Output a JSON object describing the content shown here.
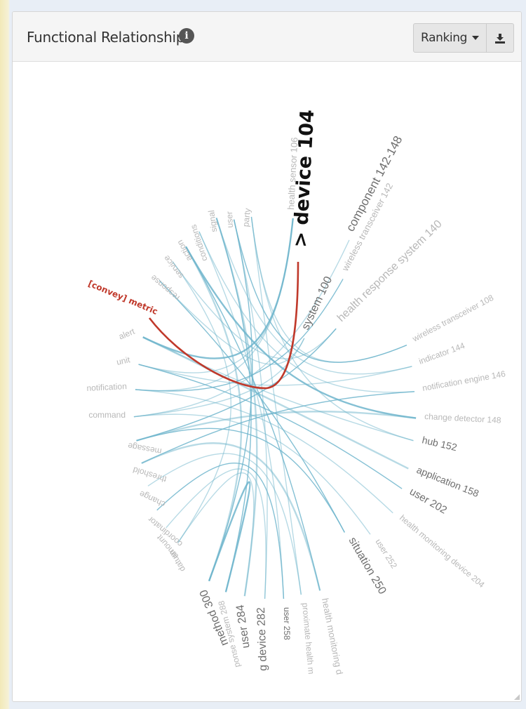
{
  "panel": {
    "title": "Functional Relationships",
    "ranking_label": "Ranking",
    "info_icon": "info-circle-icon",
    "download_icon": "download-icon"
  },
  "colors": {
    "edge": "#6fb5cc",
    "highlight": "#c0392b",
    "node_label": "#b8b8b8",
    "node_label_dark": "#6e6e6e"
  },
  "diagram": {
    "focus_node": "> device 104",
    "highlighted_node": "[convey] metric",
    "nodes": [
      "health sensor 106",
      "component 142-148",
      "wireless transceiver 142",
      "health response system 140",
      "system 100",
      "wireless transceiver 108",
      "indicator 144",
      "notification engine 146",
      "change detector 148",
      "hub 152",
      "application 158",
      "user 202",
      "health monitoring device 204",
      "user 252",
      "situation 250",
      "health monitoring d",
      "proximate health m",
      "user 258",
      "g device 282",
      "user 284",
      "ponse system 288",
      "method 300",
      "datum",
      "amount",
      "coordinator",
      "change",
      "threshold",
      "message",
      "command",
      "notification",
      "unit",
      "alert",
      "response",
      "service",
      "action",
      "conditions",
      "signal",
      "user",
      "party"
    ]
  }
}
